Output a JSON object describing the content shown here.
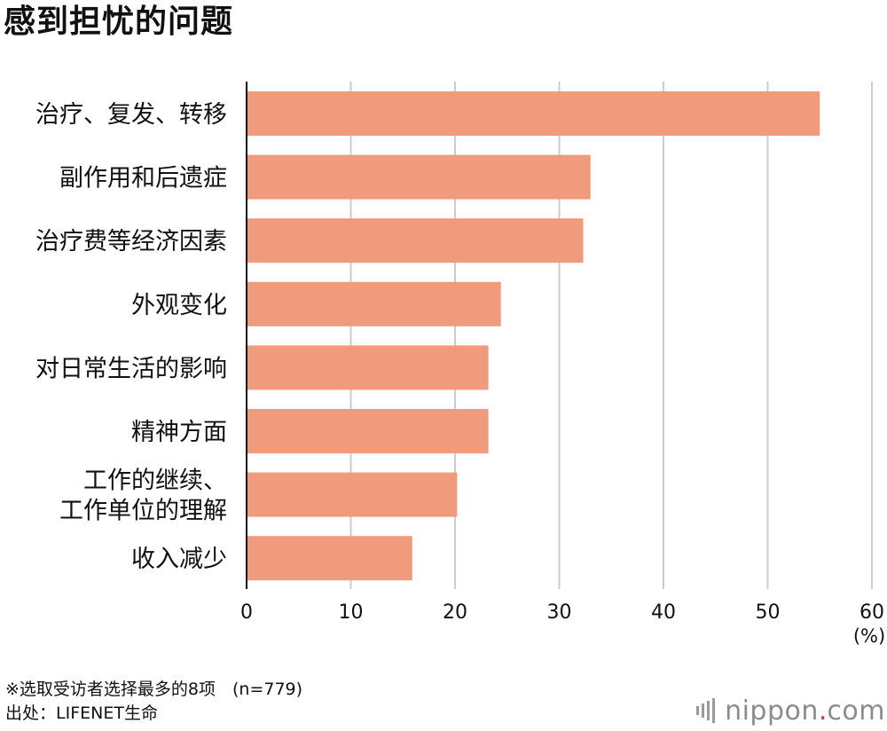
{
  "title": "感到担忧的问题",
  "chart_data": {
    "type": "bar",
    "orientation": "horizontal",
    "categories": [
      "治疗、复发、转移",
      "副作用和后遗症",
      "治疗费等经济因素",
      "外观变化",
      "对日常生活的影响",
      "精神方面",
      "工作的继续、\n工作单位的理解",
      "收入减少"
    ],
    "values": [
      55,
      33,
      32.3,
      24.4,
      23.2,
      23.2,
      20.2,
      15.9
    ],
    "xlim": [
      0,
      60
    ],
    "xticks": [
      0,
      10,
      20,
      30,
      40,
      50,
      60
    ],
    "unit_label": "(%)",
    "grid": true,
    "bar_color": "#f09b7b",
    "grid_color": "#cccccc"
  },
  "note": "※选取受访者选择最多的8项　(n=779)",
  "source": "出处：LIFENET生命",
  "logo": {
    "text_main": "nippon",
    "text_dot": ".",
    "text_tail": "com"
  }
}
